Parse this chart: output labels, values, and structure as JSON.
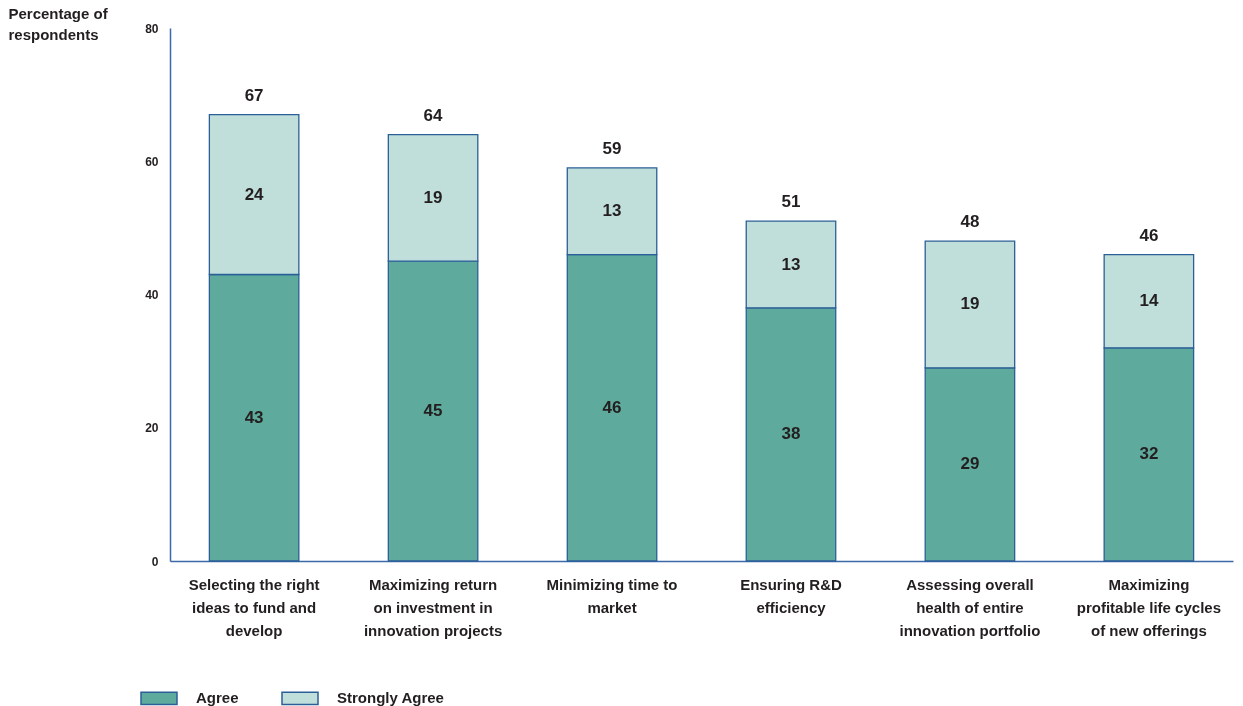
{
  "chart_data": {
    "type": "bar",
    "stacked": true,
    "ylabel": "Percentage of respondents",
    "categories": [
      "Selecting the right ideas to fund and develop",
      "Maximizing return on investment in innovation projects",
      "Minimizing time to market",
      "Ensuring R&D efficiency",
      "Assessing overall health of entire innovation portfolio",
      "Maximizing profitable life cycles of new offerings"
    ],
    "series": [
      {
        "name": "Agree",
        "color": "#5eaa9c",
        "values": [
          43,
          45,
          46,
          38,
          29,
          32
        ]
      },
      {
        "name": "Strongly Agree",
        "color": "#c0dfda",
        "values": [
          24,
          19,
          13,
          13,
          19,
          14
        ]
      }
    ],
    "ylim": [
      0,
      80
    ],
    "yticks": [
      0,
      20,
      40,
      60,
      80
    ],
    "data_labels": true,
    "totals": [
      "67",
      "64",
      "59",
      "51",
      "48",
      "46"
    ],
    "legend": "bottom left"
  }
}
